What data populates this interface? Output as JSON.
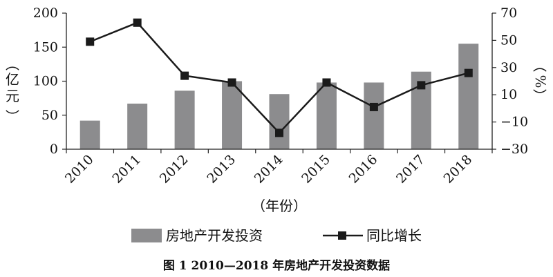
{
  "chart_data": {
    "type": "bar+line",
    "title": "图 1 2010—2018 年房地产开发投资数据",
    "xlabel": "（年份）",
    "ylabel_left": "（亿元）",
    "ylabel_right": "（%）",
    "categories": [
      "2010",
      "2011",
      "2012",
      "2013",
      "2014",
      "2015",
      "2016",
      "2017",
      "2018"
    ],
    "series": [
      {
        "name": "房地产开发投资",
        "type": "bar",
        "axis": "left",
        "values": [
          42,
          67,
          86,
          100,
          81,
          98,
          98,
          114,
          155
        ]
      },
      {
        "name": "同比增长",
        "type": "line",
        "axis": "right",
        "values": [
          49,
          63,
          24,
          19,
          -18,
          19,
          1,
          17,
          26
        ]
      }
    ],
    "ylim_left": [
      0,
      200
    ],
    "yticks_left": [
      0,
      50,
      100,
      150,
      200
    ],
    "ylim_right": [
      -30,
      70
    ],
    "yticks_right": [
      -30,
      -10,
      10,
      30,
      50,
      70
    ],
    "grid": false,
    "legend_position": "bottom",
    "colors": {
      "bar": "#8c8c8e",
      "line": "#1a1a1a"
    }
  }
}
